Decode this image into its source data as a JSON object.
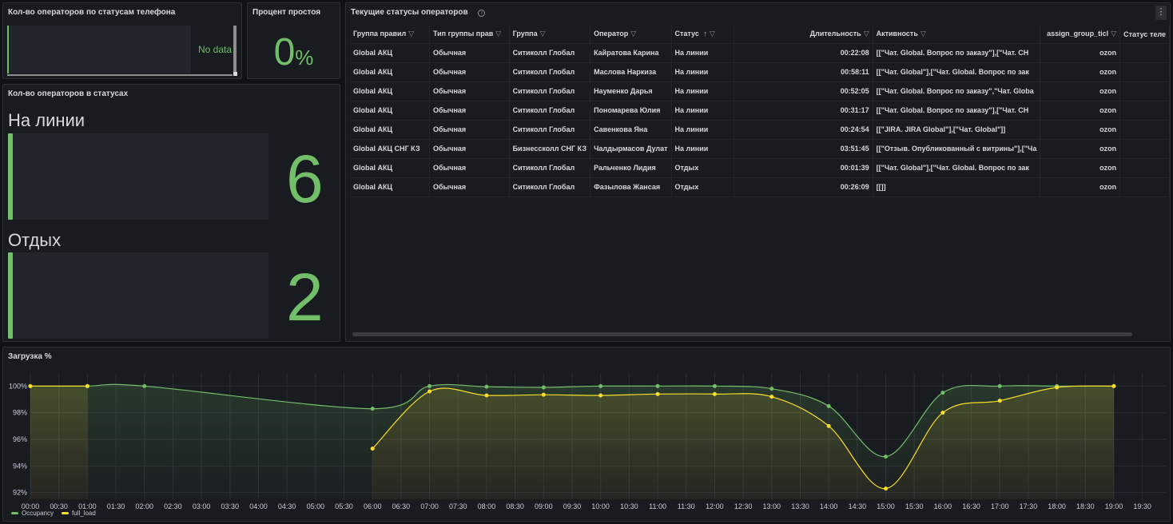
{
  "phone_panel": {
    "title": "Кол-во операторов по статусам телефона",
    "no_data": "No data"
  },
  "idle_panel": {
    "title": "Процент простоя",
    "value": "0",
    "unit": "%"
  },
  "status_panel": {
    "title": "Кол-во операторов в статусах",
    "items": [
      {
        "label": "На линии",
        "value": "6"
      },
      {
        "label": "Отдых",
        "value": "2"
      }
    ]
  },
  "table_panel": {
    "title": "Текущие статусы операторов",
    "info_icon": "info-icon",
    "columns": [
      "Группа правил",
      "Тип группы прав",
      "Группа",
      "Оператор",
      "Статус",
      "Длительность",
      "Активность",
      "assign_group_ticl",
      "Статус теле"
    ],
    "sort_indicator": "↑",
    "rows": [
      [
        "Global АКЦ",
        "Обычная",
        "Ситиколл Глобал",
        "Кайратова Карина",
        "На линии",
        "00:22:08",
        "[[\"Чат. Global. Вопрос по заказу\"],[\"Чат. CH",
        "ozon",
        ""
      ],
      [
        "Global АКЦ",
        "Обычная",
        "Ситиколл Глобал",
        "Маслова Наркиза",
        "На линии",
        "00:58:11",
        "[[\"Чат. Global\"],[\"Чат. Global. Вопрос по зак",
        "ozon",
        ""
      ],
      [
        "Global АКЦ",
        "Обычная",
        "Ситиколл Глобал",
        "Науменко Дарья",
        "На линии",
        "00:52:05",
        "[[\"Чат. Global. Вопрос по заказу\",\"Чат. Globa",
        "ozon",
        ""
      ],
      [
        "Global АКЦ",
        "Обычная",
        "Ситиколл Глобал",
        "Пономарева Юлия",
        "На линии",
        "00:31:17",
        "[[\"Чат. Global. Вопрос по заказу\"],[\"Чат. CH",
        "ozon",
        ""
      ],
      [
        "Global АКЦ",
        "Обычная",
        "Ситиколл Глобал",
        "Савенкова Яна",
        "На линии",
        "00:24:54",
        "[[\"JIRA. JIRA Global\"],[\"Чат. Global\"]]",
        "ozon",
        ""
      ],
      [
        "Global АКЦ СНГ КЗ",
        "Обычная",
        "Бизнессколл СНГ КЗ",
        "Чалдырмасов Дулат",
        "На линии",
        "03:51:45",
        "[[\"Отзыв. Опубликованный с витрины\"],[\"Ча",
        "ozon",
        ""
      ],
      [
        "Global АКЦ",
        "Обычная",
        "Ситиколл Глобал",
        "Ральченко Лидия",
        "Отдых",
        "00:01:39",
        "[[\"Чат. Global\"],[\"Чат. Global. Вопрос по зак",
        "ozon",
        ""
      ],
      [
        "Global АКЦ",
        "Обычная",
        "Ситиколл Глобал",
        "Фазылова Жансая",
        "Отдых",
        "00:26:09",
        "[[]]",
        "ozon",
        ""
      ]
    ]
  },
  "chart_panel": {
    "title": "Загрузка %"
  },
  "chart_data": {
    "type": "line",
    "title": "Загрузка %",
    "x": [
      "00:00",
      "01:00",
      "02:00",
      "06:00",
      "07:00",
      "08:00",
      "09:00",
      "10:00",
      "11:00",
      "12:00",
      "13:00",
      "14:00",
      "15:00",
      "16:00",
      "17:00",
      "18:00",
      "19:00"
    ],
    "x_ticks": [
      "00:00",
      "00:30",
      "01:00",
      "01:30",
      "02:00",
      "02:30",
      "03:00",
      "03:30",
      "04:00",
      "04:30",
      "05:00",
      "05:30",
      "06:00",
      "06:30",
      "07:00",
      "07:30",
      "08:00",
      "08:30",
      "09:00",
      "09:30",
      "10:00",
      "10:30",
      "11:00",
      "11:30",
      "12:00",
      "12:30",
      "13:00",
      "13:30",
      "14:00",
      "14:30",
      "15:00",
      "15:30",
      "16:00",
      "16:30",
      "17:00",
      "17:30",
      "18:00",
      "18:30",
      "19:00",
      "19:30"
    ],
    "y_ticks": [
      "100%",
      "98%",
      "96%",
      "94%",
      "92%"
    ],
    "ylim": [
      91.5,
      100.5
    ],
    "series": [
      {
        "name": "Occupancy",
        "color": "#73bf69",
        "values": [
          100,
          100,
          100,
          98.3,
          100,
          99.95,
          99.9,
          100,
          100,
          100,
          99.8,
          98.5,
          94.7,
          99.5,
          100,
          100,
          100
        ]
      },
      {
        "name": "full_load",
        "color": "#fade2a",
        "values": [
          100,
          100,
          null,
          95.3,
          99.6,
          99.3,
          99.35,
          99.3,
          99.4,
          99.4,
          99.2,
          97,
          92.3,
          98,
          98.9,
          99.9,
          100
        ]
      }
    ],
    "legend_position": "bottom-left",
    "grid": true
  }
}
